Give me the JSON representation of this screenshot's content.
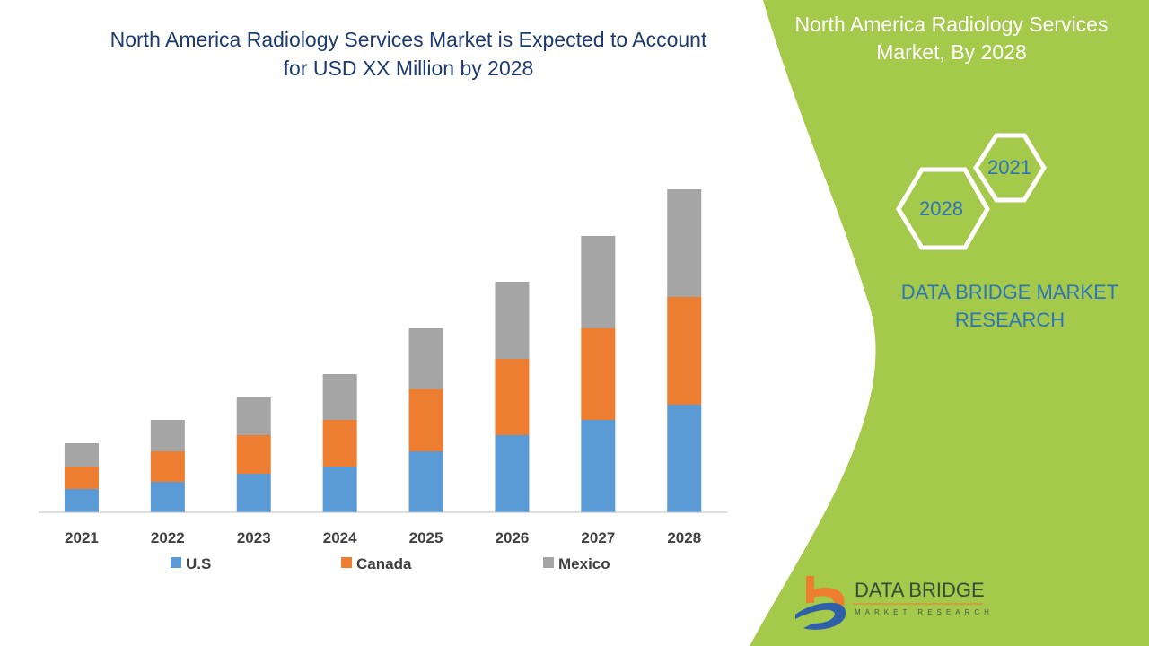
{
  "title": "North America Radiology Services Market is Expected to Account for USD XX Million by 2028",
  "side_panel": {
    "title": "North America Radiology Services Market, By 2028",
    "hex_years": [
      "2021",
      "2028"
    ],
    "brand": "DATA BRIDGE MARKET RESEARCH",
    "logo_text": "DATA BRIDGE",
    "logo_sub": "MARKET RESEARCH",
    "panel_color": "#a4c94b"
  },
  "chart_data": {
    "type": "bar",
    "stacked": true,
    "title": "North America Radiology Services Market is Expected to Account for USD XX Million by 2028",
    "xlabel": "",
    "ylabel": "",
    "categories": [
      "2021",
      "2022",
      "2023",
      "2024",
      "2025",
      "2026",
      "2027",
      "2028"
    ],
    "series": [
      {
        "name": "U.S",
        "color": "#5b9bd5",
        "values": [
          26,
          34,
          43,
          51,
          68,
          86,
          103,
          120
        ]
      },
      {
        "name": "Canada",
        "color": "#ed7d31",
        "values": [
          25,
          34,
          43,
          52,
          69,
          85,
          102,
          120
        ]
      },
      {
        "name": "Mexico",
        "color": "#a5a5a5",
        "values": [
          26,
          35,
          42,
          51,
          68,
          86,
          103,
          120
        ]
      }
    ],
    "ylim": [
      0,
      480
    ],
    "y_axis_shown": false,
    "grid": false,
    "legend": "bottom"
  }
}
